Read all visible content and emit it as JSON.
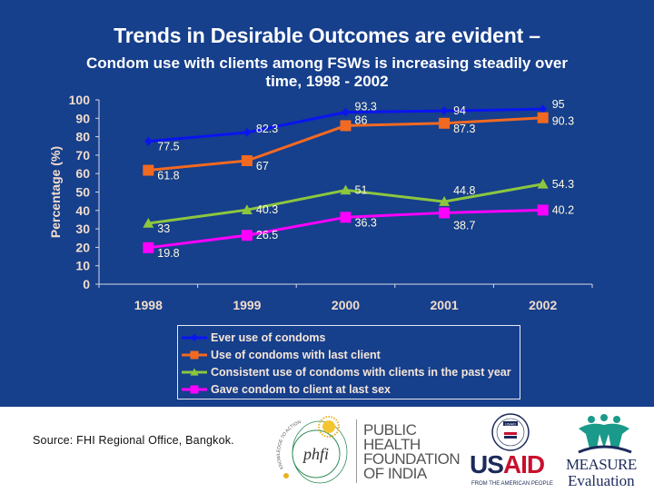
{
  "slide": {
    "title": "Trends in Desirable Outcomes are evident –",
    "subtitle_line1": "Condom use with clients among FSWs is increasing steadily over",
    "subtitle_line2": "time, 1998 - 2002",
    "background_color": "#163f8c"
  },
  "chart_data": {
    "type": "line",
    "title": "Trends in Desirable Outcomes are evident – Condom use with clients among FSWs is increasing steadily over time, 1998 - 2002",
    "xlabel": "",
    "ylabel": "Percentage (%)",
    "categories": [
      "1998",
      "1999",
      "2000",
      "2001",
      "2002"
    ],
    "ylim": [
      0,
      100
    ],
    "yticks": [
      0,
      10,
      20,
      30,
      40,
      50,
      60,
      70,
      80,
      90,
      100
    ],
    "grid": false,
    "legend_position": "bottom",
    "series": [
      {
        "name": "Ever use of condoms",
        "color": "#0a14f0",
        "marker": "diamond",
        "values": [
          77.5,
          82.3,
          93.3,
          94,
          95
        ]
      },
      {
        "name": "Use of condoms with last client",
        "color": "#f26a21",
        "marker": "square",
        "values": [
          61.8,
          67,
          86,
          87.3,
          90.3
        ]
      },
      {
        "name": "Consistent use of condoms with clients in the past year",
        "color": "#8cc63f",
        "marker": "triangle",
        "values": [
          33,
          40.3,
          51,
          44.8,
          54.3
        ]
      },
      {
        "name": "Gave condom to client at last sex",
        "color": "#ff00ff",
        "marker": "square",
        "values": [
          19.8,
          26.5,
          36.3,
          38.7,
          40.2
        ]
      }
    ]
  },
  "footer": {
    "source": "Source: FHI Regional Office, Bangkok.",
    "logos": {
      "phfi": {
        "mark": "phfi",
        "arc_text": "KNOWLEDGE TO ACTION",
        "lines": [
          "PUBLIC",
          "HEALTH",
          "FOUNDATION",
          "OF INDIA"
        ]
      },
      "usaid": {
        "word_blue": "US",
        "word_red": "AID",
        "tagline": "FROM THE AMERICAN PEOPLE",
        "seal_text": "USAID"
      },
      "measure": {
        "line1": "MEASURE",
        "line2": "Evaluation"
      }
    }
  }
}
